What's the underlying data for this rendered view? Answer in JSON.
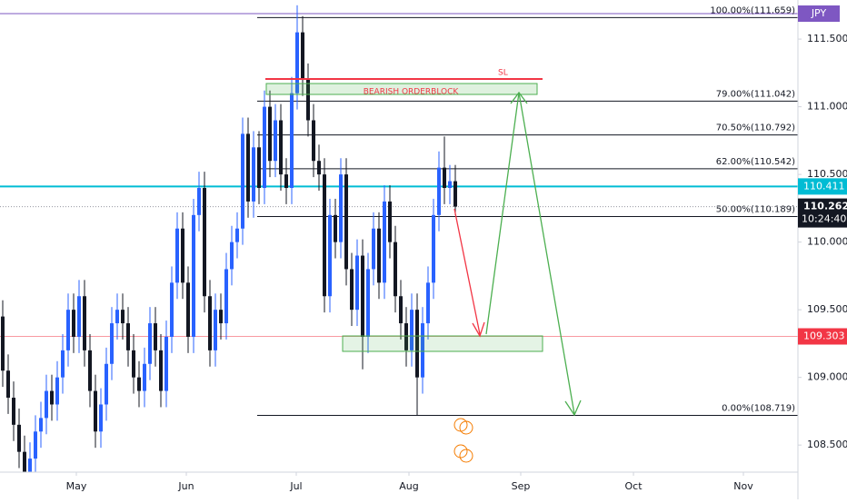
{
  "chart_data": {
    "type": "candlestick",
    "symbol": "JPY",
    "up_color": "#2962ff",
    "down_color": "#131722",
    "x": [
      0,
      1,
      2,
      3,
      4,
      5,
      6,
      7,
      8,
      9,
      10,
      11,
      12,
      13,
      14,
      15,
      16,
      17,
      18,
      19,
      20,
      21,
      22,
      23,
      24,
      25,
      26,
      27,
      28,
      29,
      30,
      31,
      32,
      33,
      34,
      35,
      36,
      37,
      38,
      39,
      40,
      41,
      42,
      43,
      44,
      45,
      46,
      47,
      48,
      49,
      50,
      51,
      52,
      53,
      54,
      55,
      56,
      57,
      58,
      59,
      60,
      61,
      62,
      63,
      64,
      65,
      66,
      67,
      68,
      69,
      70,
      71,
      72,
      73,
      74,
      75,
      76,
      77,
      78,
      79,
      80,
      81,
      82,
      83
    ],
    "open": [
      109.45,
      109.05,
      108.85,
      108.65,
      108.45,
      108.3,
      108.4,
      108.6,
      108.7,
      108.9,
      108.8,
      109.0,
      109.2,
      109.5,
      109.3,
      109.6,
      109.2,
      108.9,
      108.6,
      108.8,
      109.1,
      109.4,
      109.5,
      109.4,
      109.2,
      109.0,
      108.9,
      109.1,
      109.4,
      109.2,
      108.9,
      109.3,
      109.7,
      110.1,
      109.7,
      109.3,
      110.2,
      110.4,
      109.6,
      109.2,
      109.5,
      109.4,
      109.8,
      110.0,
      110.1,
      110.8,
      110.3,
      110.7,
      110.4,
      111.0,
      110.6,
      110.9,
      110.5,
      110.4,
      111.1,
      111.55,
      111.2,
      110.9,
      110.6,
      110.5,
      109.6,
      110.2,
      110.0,
      110.5,
      109.8,
      109.5,
      109.9,
      109.3,
      109.8,
      110.1,
      109.7,
      110.3,
      110.0,
      109.6,
      109.4,
      109.2,
      109.5,
      109.0,
      109.4,
      109.7,
      110.2,
      110.55,
      110.4,
      110.45
    ],
    "high": [
      109.57,
      109.17,
      108.97,
      108.77,
      108.57,
      108.52,
      108.72,
      108.82,
      109.02,
      109.02,
      109.12,
      109.32,
      109.62,
      109.62,
      109.72,
      109.72,
      109.32,
      109.02,
      108.92,
      109.22,
      109.52,
      109.62,
      109.62,
      109.52,
      109.32,
      109.12,
      109.22,
      109.52,
      109.52,
      109.32,
      109.42,
      109.82,
      110.22,
      110.22,
      109.82,
      110.32,
      110.52,
      110.52,
      109.72,
      109.62,
      109.62,
      109.92,
      110.12,
      110.22,
      110.92,
      110.92,
      110.82,
      110.82,
      111.12,
      111.12,
      111.02,
      111.02,
      110.62,
      111.22,
      111.75,
      111.67,
      111.32,
      111.02,
      110.72,
      110.62,
      110.32,
      110.32,
      110.62,
      110.62,
      109.92,
      110.02,
      110.02,
      109.92,
      110.22,
      110.22,
      110.42,
      110.42,
      110.12,
      109.72,
      109.52,
      109.62,
      109.62,
      109.52,
      109.82,
      110.32,
      110.67,
      110.78,
      110.57,
      110.57
    ],
    "low": [
      108.93,
      108.73,
      108.53,
      108.33,
      108.18,
      108.18,
      108.28,
      108.48,
      108.58,
      108.68,
      108.68,
      108.88,
      109.08,
      109.18,
      109.18,
      109.08,
      108.78,
      108.48,
      108.48,
      108.68,
      108.98,
      109.28,
      109.28,
      109.08,
      108.88,
      108.78,
      108.78,
      108.98,
      109.08,
      108.78,
      108.78,
      109.18,
      109.58,
      109.58,
      109.18,
      109.18,
      110.08,
      109.48,
      109.08,
      109.08,
      109.28,
      109.28,
      109.68,
      109.88,
      109.98,
      110.18,
      110.18,
      110.28,
      110.28,
      110.48,
      110.48,
      110.38,
      110.28,
      110.28,
      110.98,
      111.08,
      110.78,
      110.48,
      110.38,
      109.48,
      109.48,
      109.88,
      109.88,
      109.68,
      109.38,
      109.38,
      109.06,
      109.18,
      109.68,
      109.58,
      109.58,
      109.88,
      109.48,
      109.28,
      109.08,
      109.08,
      108.72,
      108.88,
      109.28,
      109.58,
      110.08,
      110.28,
      110.28,
      110.2
    ],
    "close": [
      109.05,
      108.85,
      108.65,
      108.45,
      108.3,
      108.4,
      108.6,
      108.7,
      108.9,
      108.8,
      109.0,
      109.2,
      109.5,
      109.3,
      109.6,
      109.2,
      108.9,
      108.6,
      108.8,
      109.1,
      109.4,
      109.5,
      109.4,
      109.2,
      109.0,
      108.9,
      109.1,
      109.4,
      109.2,
      108.9,
      109.3,
      109.7,
      110.1,
      109.7,
      109.3,
      110.2,
      110.4,
      109.6,
      109.2,
      109.5,
      109.4,
      109.8,
      110.0,
      110.1,
      110.8,
      110.3,
      110.7,
      110.4,
      111.0,
      110.6,
      110.9,
      110.5,
      110.4,
      111.1,
      111.55,
      111.2,
      110.9,
      110.6,
      110.5,
      109.6,
      110.2,
      110.0,
      110.5,
      109.8,
      109.5,
      109.9,
      109.3,
      109.8,
      110.1,
      109.7,
      110.3,
      110.0,
      109.6,
      109.4,
      109.2,
      109.5,
      109.0,
      109.4,
      109.7,
      110.2,
      110.55,
      110.4,
      110.45,
      110.262
    ],
    "xlim": [
      -0.5,
      145.83
    ],
    "xticks": [
      {
        "value": 13.5,
        "label": "May"
      },
      {
        "value": 33.67,
        "label": "Jun"
      },
      {
        "value": 53.83,
        "label": "Jul"
      },
      {
        "value": 74.5,
        "label": "Aug"
      },
      {
        "value": 95,
        "label": "Sep"
      },
      {
        "value": 115.67,
        "label": "Oct"
      },
      {
        "value": 135.83,
        "label": "Nov"
      }
    ],
    "ylim": [
      108.3,
      111.789
    ],
    "yticks": [
      {
        "value": 108.5,
        "label": "108.500"
      },
      {
        "value": 109,
        "label": "109.000"
      },
      {
        "value": 109.5,
        "label": "109.500"
      },
      {
        "value": 110,
        "label": "110.000"
      },
      {
        "value": 110.5,
        "label": "110.500"
      },
      {
        "value": 111,
        "label": "111.000"
      },
      {
        "value": 111.5,
        "label": "111.500"
      }
    ],
    "fib_levels": [
      {
        "value": 111.659,
        "label": "100.00%(111.659)"
      },
      {
        "value": 111.042,
        "label": "79.00%(111.042)"
      },
      {
        "value": 110.792,
        "label": "70.50%(110.792)"
      },
      {
        "value": 110.542,
        "label": "62.00%(110.542)"
      },
      {
        "value": 110.189,
        "label": "50.00%(110.189)"
      },
      {
        "value": 108.719,
        "label": "0.00%(108.719)"
      }
    ],
    "price_lines": [
      {
        "value": 110.411,
        "label": "110.411",
        "color": "#00bcd4"
      },
      {
        "value": 109.303,
        "label": "109.303",
        "color": "#f23645"
      }
    ],
    "last_price": {
      "value": 110.262,
      "label": "110.262",
      "countdown": "10:24:40"
    },
    "annotations": {
      "sl": "SL",
      "orderblock": "BEARISH ORDERBLOCK"
    }
  }
}
